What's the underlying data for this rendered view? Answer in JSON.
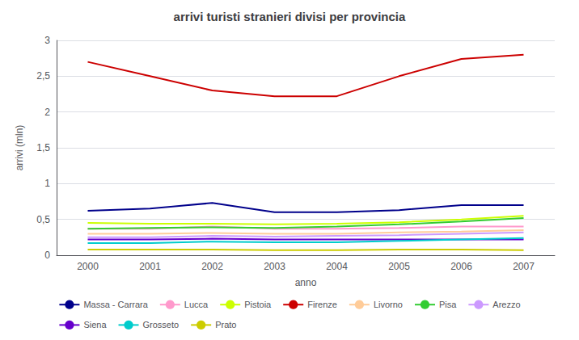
{
  "chart_data": {
    "type": "line",
    "title": "arrivi turisti stranieri divisi per provincia",
    "xlabel": "anno",
    "ylabel": "arrivi (mln)",
    "categories": [
      "2000",
      "2001",
      "2002",
      "2003",
      "2004",
      "2005",
      "2006",
      "2007"
    ],
    "ylim": [
      0,
      3
    ],
    "yticks": [
      0,
      {
        "value": 0.5,
        "label": "0,5"
      },
      1,
      {
        "value": 1.5,
        "label": "1,5"
      },
      2,
      {
        "value": 2.5,
        "label": "2,5"
      },
      3
    ],
    "grid": true,
    "legend": "bottom",
    "series": [
      {
        "name": "Massa - Carrara",
        "color": "#00008B",
        "values": [
          0.62,
          0.65,
          0.73,
          0.6,
          0.6,
          0.63,
          0.7,
          0.7
        ]
      },
      {
        "name": "Lucca",
        "color": "#FF99CC",
        "values": [
          0.37,
          0.37,
          0.4,
          0.37,
          0.37,
          0.38,
          0.4,
          0.4
        ]
      },
      {
        "name": "Pistoia",
        "color": "#CCFF00",
        "values": [
          0.45,
          0.44,
          0.44,
          0.43,
          0.44,
          0.46,
          0.5,
          0.55
        ]
      },
      {
        "name": "Firenze",
        "color": "#CC0000",
        "values": [
          2.7,
          2.5,
          2.3,
          2.22,
          2.22,
          2.5,
          2.74,
          2.8
        ]
      },
      {
        "name": "Livorno",
        "color": "#FFCC99",
        "values": [
          0.3,
          0.3,
          0.31,
          0.3,
          0.3,
          0.32,
          0.33,
          0.35
        ]
      },
      {
        "name": "Pisa",
        "color": "#33CC33",
        "values": [
          0.37,
          0.38,
          0.39,
          0.38,
          0.4,
          0.43,
          0.47,
          0.52
        ]
      },
      {
        "name": "Arezzo",
        "color": "#CC99FF",
        "values": [
          0.25,
          0.25,
          0.27,
          0.26,
          0.27,
          0.28,
          0.3,
          0.32
        ]
      },
      {
        "name": "Siena",
        "color": "#6600CC",
        "values": [
          0.22,
          0.22,
          0.23,
          0.22,
          0.22,
          0.22,
          0.22,
          0.22
        ]
      },
      {
        "name": "Grosseto",
        "color": "#00CCCC",
        "values": [
          0.17,
          0.17,
          0.19,
          0.18,
          0.18,
          0.2,
          0.22,
          0.24
        ]
      },
      {
        "name": "Prato",
        "color": "#CCCC00",
        "values": [
          0.08,
          0.08,
          0.08,
          0.07,
          0.07,
          0.08,
          0.08,
          0.07
        ]
      }
    ]
  }
}
